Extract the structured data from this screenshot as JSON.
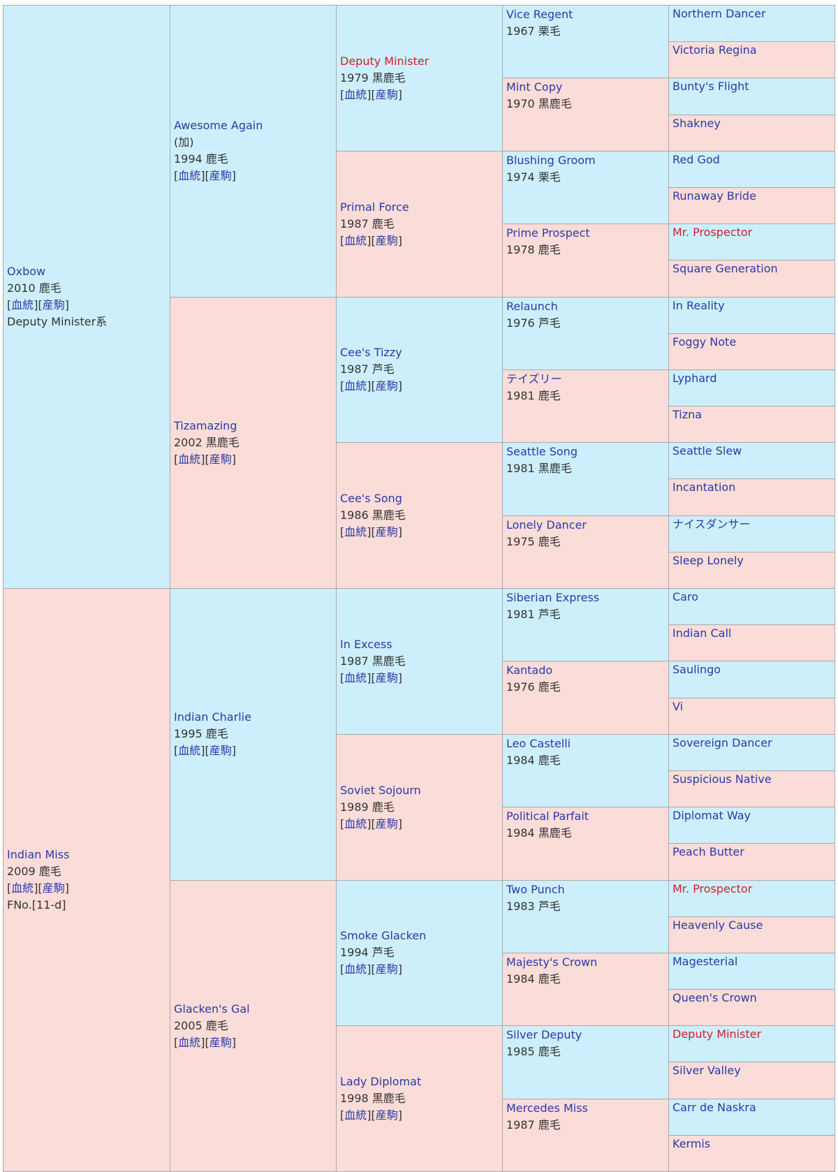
{
  "colors": {
    "male_bg": "#cdeffb",
    "female_bg": "#fadcd8",
    "link": "#2a3aa8",
    "highlight": "#d21d2b",
    "text": "#333333"
  },
  "links": {
    "pedigree": "血統",
    "offspring": "産駒"
  },
  "ancestors": {
    "s": {
      "name": "Oxbow",
      "info": "2010 鹿毛",
      "note": "Deputy Minister系"
    },
    "ss": {
      "name": "Awesome Again",
      "country": "(加)",
      "info": "1994 鹿毛"
    },
    "sss": {
      "name": "Deputy Minister",
      "info": "1979 黒鹿毛",
      "highlight": true
    },
    "ssss": {
      "name": "Vice Regent",
      "info": "1967 栗毛"
    },
    "sssss": {
      "name": "Northern Dancer"
    },
    "ssssd": {
      "name": "Victoria Regina"
    },
    "sssd": {
      "name": "Mint Copy",
      "info": "1970 黒鹿毛"
    },
    "sssds": {
      "name": "Bunty's Flight"
    },
    "sssdd": {
      "name": "Shakney"
    },
    "ssd": {
      "name": "Primal Force",
      "info": "1987 鹿毛"
    },
    "ssds": {
      "name": "Blushing Groom",
      "info": "1974 栗毛"
    },
    "ssdss": {
      "name": "Red God"
    },
    "ssdsd": {
      "name": "Runaway Bride"
    },
    "ssdd": {
      "name": "Prime Prospect",
      "info": "1978 鹿毛"
    },
    "ssdds": {
      "name": "Mr. Prospector",
      "highlight": true
    },
    "ssddd": {
      "name": "Square Generation"
    },
    "sd": {
      "name": "Tizamazing",
      "info": "2002 黒鹿毛"
    },
    "sds": {
      "name": "Cee's Tizzy",
      "info": "1987 芦毛"
    },
    "sdss": {
      "name": "Relaunch",
      "info": "1976 芦毛"
    },
    "sdsss": {
      "name": "In Reality"
    },
    "sdssd": {
      "name": "Foggy Note"
    },
    "sdsd": {
      "name": "テイズリー",
      "info": "1981 鹿毛"
    },
    "sdsds": {
      "name": "Lyphard"
    },
    "sdsdd": {
      "name": "Tizna"
    },
    "sdd": {
      "name": "Cee's Song",
      "info": "1986 黒鹿毛"
    },
    "sdds": {
      "name": "Seattle Song",
      "info": "1981 黒鹿毛"
    },
    "sddss": {
      "name": "Seattle Slew"
    },
    "sddsd": {
      "name": "Incantation"
    },
    "sddd": {
      "name": "Lonely Dancer",
      "info": "1975 鹿毛"
    },
    "sddds": {
      "name": "ナイスダンサー"
    },
    "sdddd": {
      "name": "Sleep Lonely"
    },
    "d": {
      "name": "Indian Miss",
      "info": "2009 鹿毛",
      "note": "FNo.[11-d]"
    },
    "ds": {
      "name": "Indian Charlie",
      "info": "1995 鹿毛"
    },
    "dss": {
      "name": "In Excess",
      "info": "1987 黒鹿毛"
    },
    "dsss": {
      "name": "Siberian Express",
      "info": "1981 芦毛"
    },
    "dssss": {
      "name": "Caro"
    },
    "dsssd": {
      "name": "Indian Call"
    },
    "dssd": {
      "name": "Kantado",
      "info": "1976 鹿毛"
    },
    "dssds": {
      "name": "Saulingo"
    },
    "dssdd": {
      "name": "Vi"
    },
    "dsd": {
      "name": "Soviet Sojourn",
      "info": "1989 鹿毛"
    },
    "dsds": {
      "name": "Leo Castelli",
      "info": "1984 鹿毛"
    },
    "dsdss": {
      "name": "Sovereign Dancer"
    },
    "dsdsd": {
      "name": "Suspicious Native"
    },
    "dsdd": {
      "name": "Political Parfait",
      "info": "1984 黒鹿毛"
    },
    "dsdds": {
      "name": "Diplomat Way"
    },
    "dsddd": {
      "name": "Peach Butter"
    },
    "dd": {
      "name": "Glacken's Gal",
      "info": "2005 鹿毛"
    },
    "dds": {
      "name": "Smoke Glacken",
      "info": "1994 芦毛"
    },
    "ddss": {
      "name": "Two Punch",
      "info": "1983 芦毛"
    },
    "ddsss": {
      "name": "Mr. Prospector",
      "highlight": true
    },
    "ddssd": {
      "name": "Heavenly Cause"
    },
    "ddsd": {
      "name": "Majesty's Crown",
      "info": "1984 鹿毛"
    },
    "ddsds": {
      "name": "Magesterial"
    },
    "ddsdd": {
      "name": "Queen's Crown"
    },
    "ddd": {
      "name": "Lady Diplomat",
      "info": "1998 黒鹿毛"
    },
    "ddds": {
      "name": "Silver Deputy",
      "info": "1985 鹿毛"
    },
    "dddss": {
      "name": "Deputy Minister",
      "highlight": true
    },
    "dddsd": {
      "name": "Silver Valley"
    },
    "dddd": {
      "name": "Mercedes Miss",
      "info": "1987 鹿毛"
    },
    "dddds": {
      "name": "Carr de Naskra"
    },
    "ddddd": {
      "name": "Kermis"
    }
  }
}
